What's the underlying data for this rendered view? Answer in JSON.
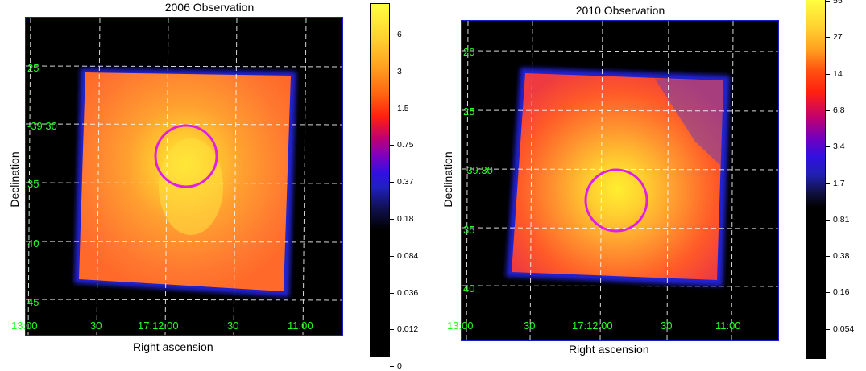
{
  "panels": [
    {
      "title": "2006 Observation",
      "xlabel": "Right ascension",
      "ylabel": "Declination",
      "ra_ticks": [
        "13:00",
        "30",
        "17:12:00",
        "30",
        "11:00"
      ],
      "dec_ticks": [
        "25",
        "-39:30",
        "35",
        "40",
        "45"
      ],
      "colorbar_ticks": [
        "6",
        "3",
        "1.5",
        "0.75",
        "0.37",
        "0.18",
        "0.084",
        "0.036",
        "0.012",
        "0"
      ],
      "region": "magenta-circle"
    },
    {
      "title": "2010 Observation",
      "xlabel": "Right ascension",
      "ylabel": "Declination",
      "ra_ticks": [
        "13:00",
        "30",
        "17:12:00",
        "30",
        "11:00"
      ],
      "dec_ticks": [
        "20",
        "25",
        "-39:30",
        "35",
        "40"
      ],
      "colorbar_ticks": [
        "55",
        "27",
        "14",
        "6.8",
        "3.4",
        "1.7",
        "0.81",
        "0.38",
        "0.16",
        "0.054"
      ],
      "region": "magenta-circle"
    }
  ],
  "colors": {
    "tick_text": "#22ff22",
    "region_circle": "#e020e0",
    "frame_border": "#1a1ad0",
    "grid": "#ffffff"
  }
}
